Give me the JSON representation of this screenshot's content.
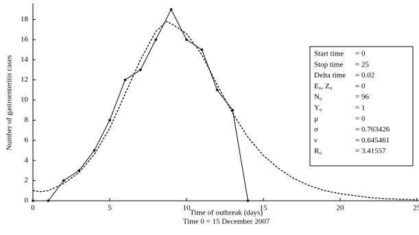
{
  "chart_data": {
    "type": "line",
    "xlabel": "Time of outbreak (days)",
    "xlabel2": "Time 0 = 15 December 2007",
    "ylabel": "Number of gastroenteritis cases",
    "xlim": [
      0,
      25
    ],
    "xticks": [
      0,
      5,
      10,
      15,
      20,
      25
    ],
    "ylim": [
      0,
      19.6
    ],
    "yticks": [
      0,
      2,
      4,
      6,
      8,
      10,
      12,
      14,
      16,
      18
    ],
    "series": [
      {
        "color": "#000000",
        "dash": false,
        "markers": true,
        "x": [
          0,
          1,
          2,
          3,
          4,
          5,
          6,
          7,
          8,
          9,
          10,
          11,
          12,
          13,
          14
        ],
        "values": [
          0,
          0,
          2,
          3,
          5,
          8,
          12,
          13,
          16,
          19,
          16,
          15,
          11,
          9,
          0
        ]
      },
      {
        "color": "#000000",
        "dash": true,
        "markers": false,
        "x": [
          0,
          0.5,
          1,
          2,
          3,
          4,
          5,
          6,
          7,
          8,
          8.7,
          9,
          10,
          11,
          12,
          13,
          14,
          15,
          16,
          17,
          18,
          19,
          20,
          21,
          22,
          23,
          24,
          25
        ],
        "values": [
          1,
          0.9,
          1,
          1.7,
          2.8,
          4.6,
          7.2,
          10.6,
          14,
          16.8,
          17.8,
          17.6,
          16.6,
          14.5,
          11.5,
          8.7,
          6.3,
          4.5,
          3.2,
          2.2,
          1.5,
          1,
          0.7,
          0.5,
          0.3,
          0.2,
          0.15,
          0.1
        ]
      }
    ],
    "parameters": [
      {
        "name": "Start time",
        "value": "= 0"
      },
      {
        "name": "Stop time",
        "value": "= 25"
      },
      {
        "name": "Delta time",
        "value": "= 0.02"
      },
      {
        "name": "E₀, Z₀",
        "value": "= 0"
      },
      {
        "name": "N₀",
        "value": "= 96"
      },
      {
        "name": "Y₀",
        "value": "= 1"
      },
      {
        "name": "μ",
        "value": "= 0"
      },
      {
        "name": "σ",
        "value": "= 0.763426"
      },
      {
        "name": "ν",
        "value": "= 0.645461"
      },
      {
        "name": "R₀",
        "value": "= 3.41557"
      }
    ]
  }
}
